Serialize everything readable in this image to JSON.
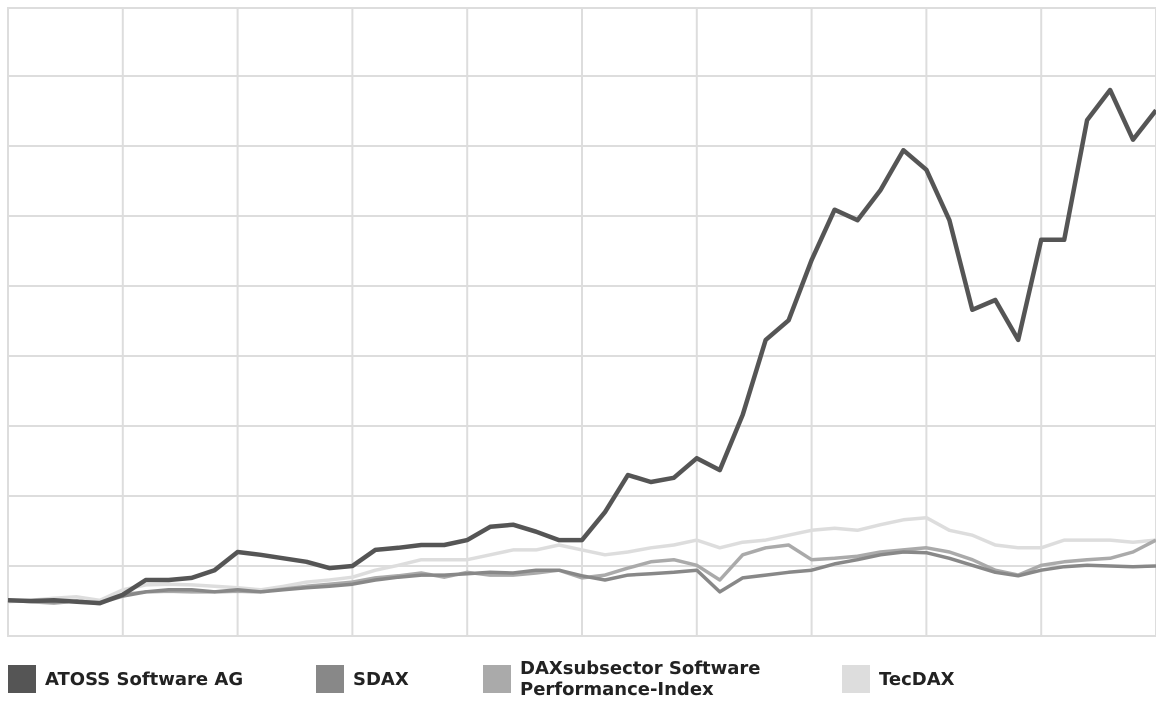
{
  "chart_data": {
    "type": "line",
    "x": [
      0,
      0.2,
      0.4,
      0.6,
      0.8,
      1,
      1.2,
      1.4,
      1.6,
      1.8,
      2,
      2.2,
      2.4,
      2.6,
      2.8,
      3,
      3.2,
      3.4,
      3.6,
      3.8,
      4,
      4.2,
      4.4,
      4.6,
      4.8,
      5,
      5.2,
      5.4,
      5.6,
      5.8,
      6,
      6.2,
      6.4,
      6.6,
      6.8,
      7,
      7.2,
      7.4,
      7.6,
      7.8,
      8,
      8.2,
      8.4,
      8.6,
      8.8,
      9,
      9.2,
      9.4,
      9.6,
      9.8,
      10
    ],
    "xlim": [
      0,
      10
    ],
    "xticks": [
      0,
      1,
      2,
      3,
      4,
      5,
      6,
      7,
      8,
      9,
      10
    ],
    "ylim": [
      0,
      9
    ],
    "yticks": [
      0,
      1,
      2,
      3,
      4,
      5,
      6,
      7,
      8
    ],
    "grid": true,
    "legend": "bottom",
    "series": [
      {
        "name": "ATOSS Software AG",
        "color": "#555555",
        "values": [
          0.51,
          0.5,
          0.51,
          0.49,
          0.47,
          0.59,
          0.8,
          0.8,
          0.83,
          0.94,
          1.2,
          1.16,
          1.11,
          1.06,
          0.97,
          1.0,
          1.23,
          1.26,
          1.3,
          1.3,
          1.37,
          1.56,
          1.59,
          1.49,
          1.37,
          1.37,
          1.77,
          2.3,
          2.2,
          2.26,
          2.54,
          2.37,
          3.16,
          4.23,
          4.51,
          5.37,
          6.09,
          5.94,
          6.37,
          6.94,
          6.66,
          5.94,
          4.66,
          4.8,
          4.23,
          5.66,
          5.66,
          7.37,
          7.8,
          7.09,
          7.51
        ]
      },
      {
        "name": "SDAX",
        "color": "#888888",
        "values": [
          0.51,
          0.5,
          0.49,
          0.5,
          0.47,
          0.57,
          0.63,
          0.66,
          0.66,
          0.63,
          0.66,
          0.63,
          0.66,
          0.69,
          0.71,
          0.74,
          0.8,
          0.84,
          0.87,
          0.87,
          0.89,
          0.91,
          0.9,
          0.94,
          0.94,
          0.86,
          0.8,
          0.87,
          0.89,
          0.91,
          0.94,
          0.63,
          0.83,
          0.87,
          0.91,
          0.94,
          1.03,
          1.09,
          1.16,
          1.2,
          1.19,
          1.11,
          1.01,
          0.91,
          0.86,
          0.94,
          0.99,
          1.01,
          1.0,
          0.99,
          1.0
        ]
      },
      {
        "name": "DAXsubsector Software Performance-Index",
        "color": "#aaaaaa",
        "values": [
          0.51,
          0.49,
          0.47,
          0.5,
          0.46,
          0.59,
          0.63,
          0.64,
          0.63,
          0.63,
          0.64,
          0.63,
          0.67,
          0.71,
          0.74,
          0.77,
          0.83,
          0.86,
          0.9,
          0.84,
          0.91,
          0.87,
          0.87,
          0.9,
          0.94,
          0.83,
          0.87,
          0.97,
          1.06,
          1.09,
          1.01,
          0.8,
          1.16,
          1.26,
          1.3,
          1.09,
          1.11,
          1.14,
          1.2,
          1.23,
          1.26,
          1.2,
          1.09,
          0.94,
          0.87,
          1.01,
          1.06,
          1.09,
          1.11,
          1.2,
          1.37
        ]
      },
      {
        "name": "TecDAX",
        "color": "#dddddd",
        "values": [
          0.49,
          0.51,
          0.54,
          0.56,
          0.51,
          0.66,
          0.73,
          0.74,
          0.73,
          0.71,
          0.69,
          0.66,
          0.71,
          0.77,
          0.8,
          0.84,
          0.94,
          1.01,
          1.09,
          1.09,
          1.09,
          1.16,
          1.23,
          1.23,
          1.3,
          1.23,
          1.16,
          1.2,
          1.26,
          1.3,
          1.37,
          1.26,
          1.34,
          1.37,
          1.44,
          1.51,
          1.54,
          1.51,
          1.59,
          1.66,
          1.69,
          1.51,
          1.44,
          1.3,
          1.26,
          1.26,
          1.37,
          1.37,
          1.37,
          1.34,
          1.37
        ]
      }
    ]
  }
}
